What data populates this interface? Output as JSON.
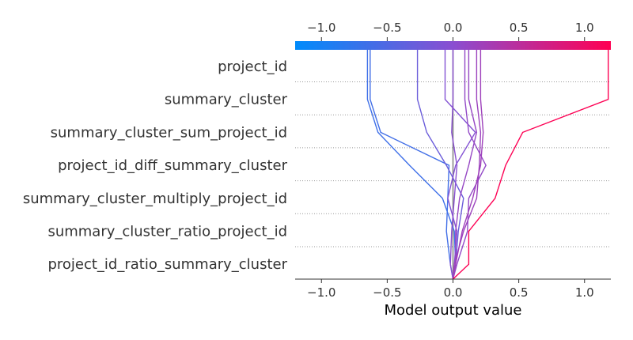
{
  "chart_data": {
    "type": "decision_plot",
    "xlabel": "Model output value",
    "xlim": [
      -1.2,
      1.2
    ],
    "xticks": [
      -1.0,
      -0.5,
      0.0,
      0.5,
      1.0
    ],
    "xtick_labels": [
      "−1.0",
      "−0.5",
      "0.0",
      "0.5",
      "1.0"
    ],
    "base_value": 0.0,
    "colormap": [
      "#008bfb",
      "#8a4fd1",
      "#ff0052"
    ],
    "baseline_color": "#808080",
    "features": [
      "project_id",
      "summary_cluster",
      "summary_cluster_sum_project_id",
      "project_id_diff_summary_cluster",
      "summary_cluster_multiply_project_id",
      "summary_cluster_ratio_project_id",
      "project_id_ratio_summary_cluster"
    ],
    "series": [
      {
        "values": [
          0.0,
          -0.02,
          -0.05,
          -0.04,
          -0.03,
          -0.55,
          -0.63
        ]
      },
      {
        "values": [
          0.0,
          0.02,
          0.01,
          -0.08,
          -0.33,
          -0.57,
          -0.65
        ]
      },
      {
        "values": [
          0.0,
          0.02,
          0.04,
          0.08,
          -0.05,
          -0.2,
          -0.27
        ]
      },
      {
        "values": [
          0.0,
          0.01,
          0.03,
          -0.04,
          0.02,
          0.17,
          -0.06
        ]
      },
      {
        "values": [
          0.0,
          -0.02,
          -0.01,
          0.01,
          0.03,
          -0.01,
          0.0
        ]
      },
      {
        "values": [
          0.0,
          0.02,
          0.02,
          0.05,
          0.12,
          0.18,
          0.12
        ]
      },
      {
        "values": [
          0.0,
          0.03,
          0.11,
          0.12,
          0.25,
          0.12,
          0.09
        ]
      },
      {
        "values": [
          0.0,
          0.01,
          0.08,
          0.18,
          0.2,
          0.21,
          0.18
        ]
      },
      {
        "values": [
          0.0,
          0.02,
          0.07,
          0.15,
          0.21,
          0.23,
          0.21
        ]
      },
      {
        "values": [
          0.0,
          0.12,
          0.12,
          0.32,
          0.4,
          0.53,
          1.18
        ]
      }
    ]
  }
}
